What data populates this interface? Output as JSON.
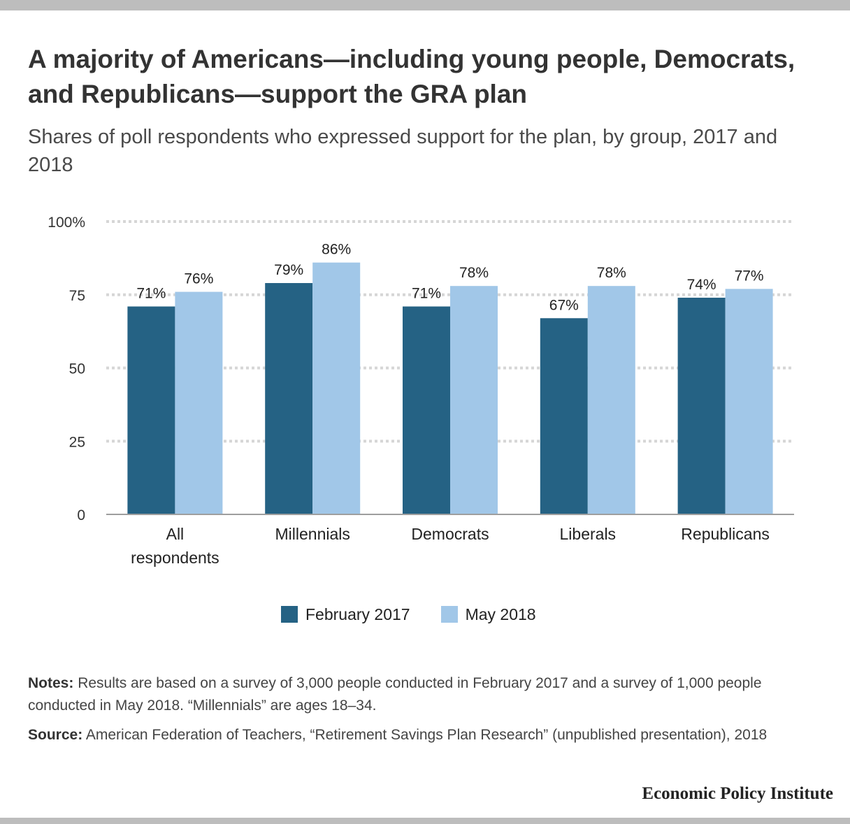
{
  "title": "A majority of Americans—including young people, Democrats, and Republicans—support the GRA plan",
  "subtitle": "Shares of poll respondents who expressed support for the plan, by group, 2017 and 2018",
  "chart_data": {
    "type": "bar",
    "categories": [
      [
        "All",
        "respondents"
      ],
      [
        "Millennials"
      ],
      [
        "Democrats"
      ],
      [
        "Liberals"
      ],
      [
        "Republicans"
      ]
    ],
    "series": [
      {
        "name": "February 2017",
        "values": [
          71,
          79,
          71,
          67,
          74
        ],
        "color": "#256284"
      },
      {
        "name": "May 2018",
        "values": [
          76,
          86,
          78,
          78,
          77
        ],
        "color": "#a1c7e8"
      }
    ],
    "ylim": [
      0,
      100
    ],
    "yticks": [
      0,
      25,
      50,
      75,
      100
    ],
    "ytick_labels": [
      "0",
      "25",
      "50",
      "75",
      "100%"
    ],
    "value_suffix": "%",
    "grid": true,
    "legend": "bottom-center"
  },
  "notes": {
    "notes_label": "Notes:",
    "notes_text": "Results are based on a survey of 3,000 people conducted in February 2017 and a survey of 1,000 people conducted in May 2018. “Millennials” are ages 18–34.",
    "source_label": "Source:",
    "source_text": "American Federation of Teachers, “Retirement Savings Plan Research” (unpublished presentation), 2018"
  },
  "brand": "Economic Policy Institute"
}
